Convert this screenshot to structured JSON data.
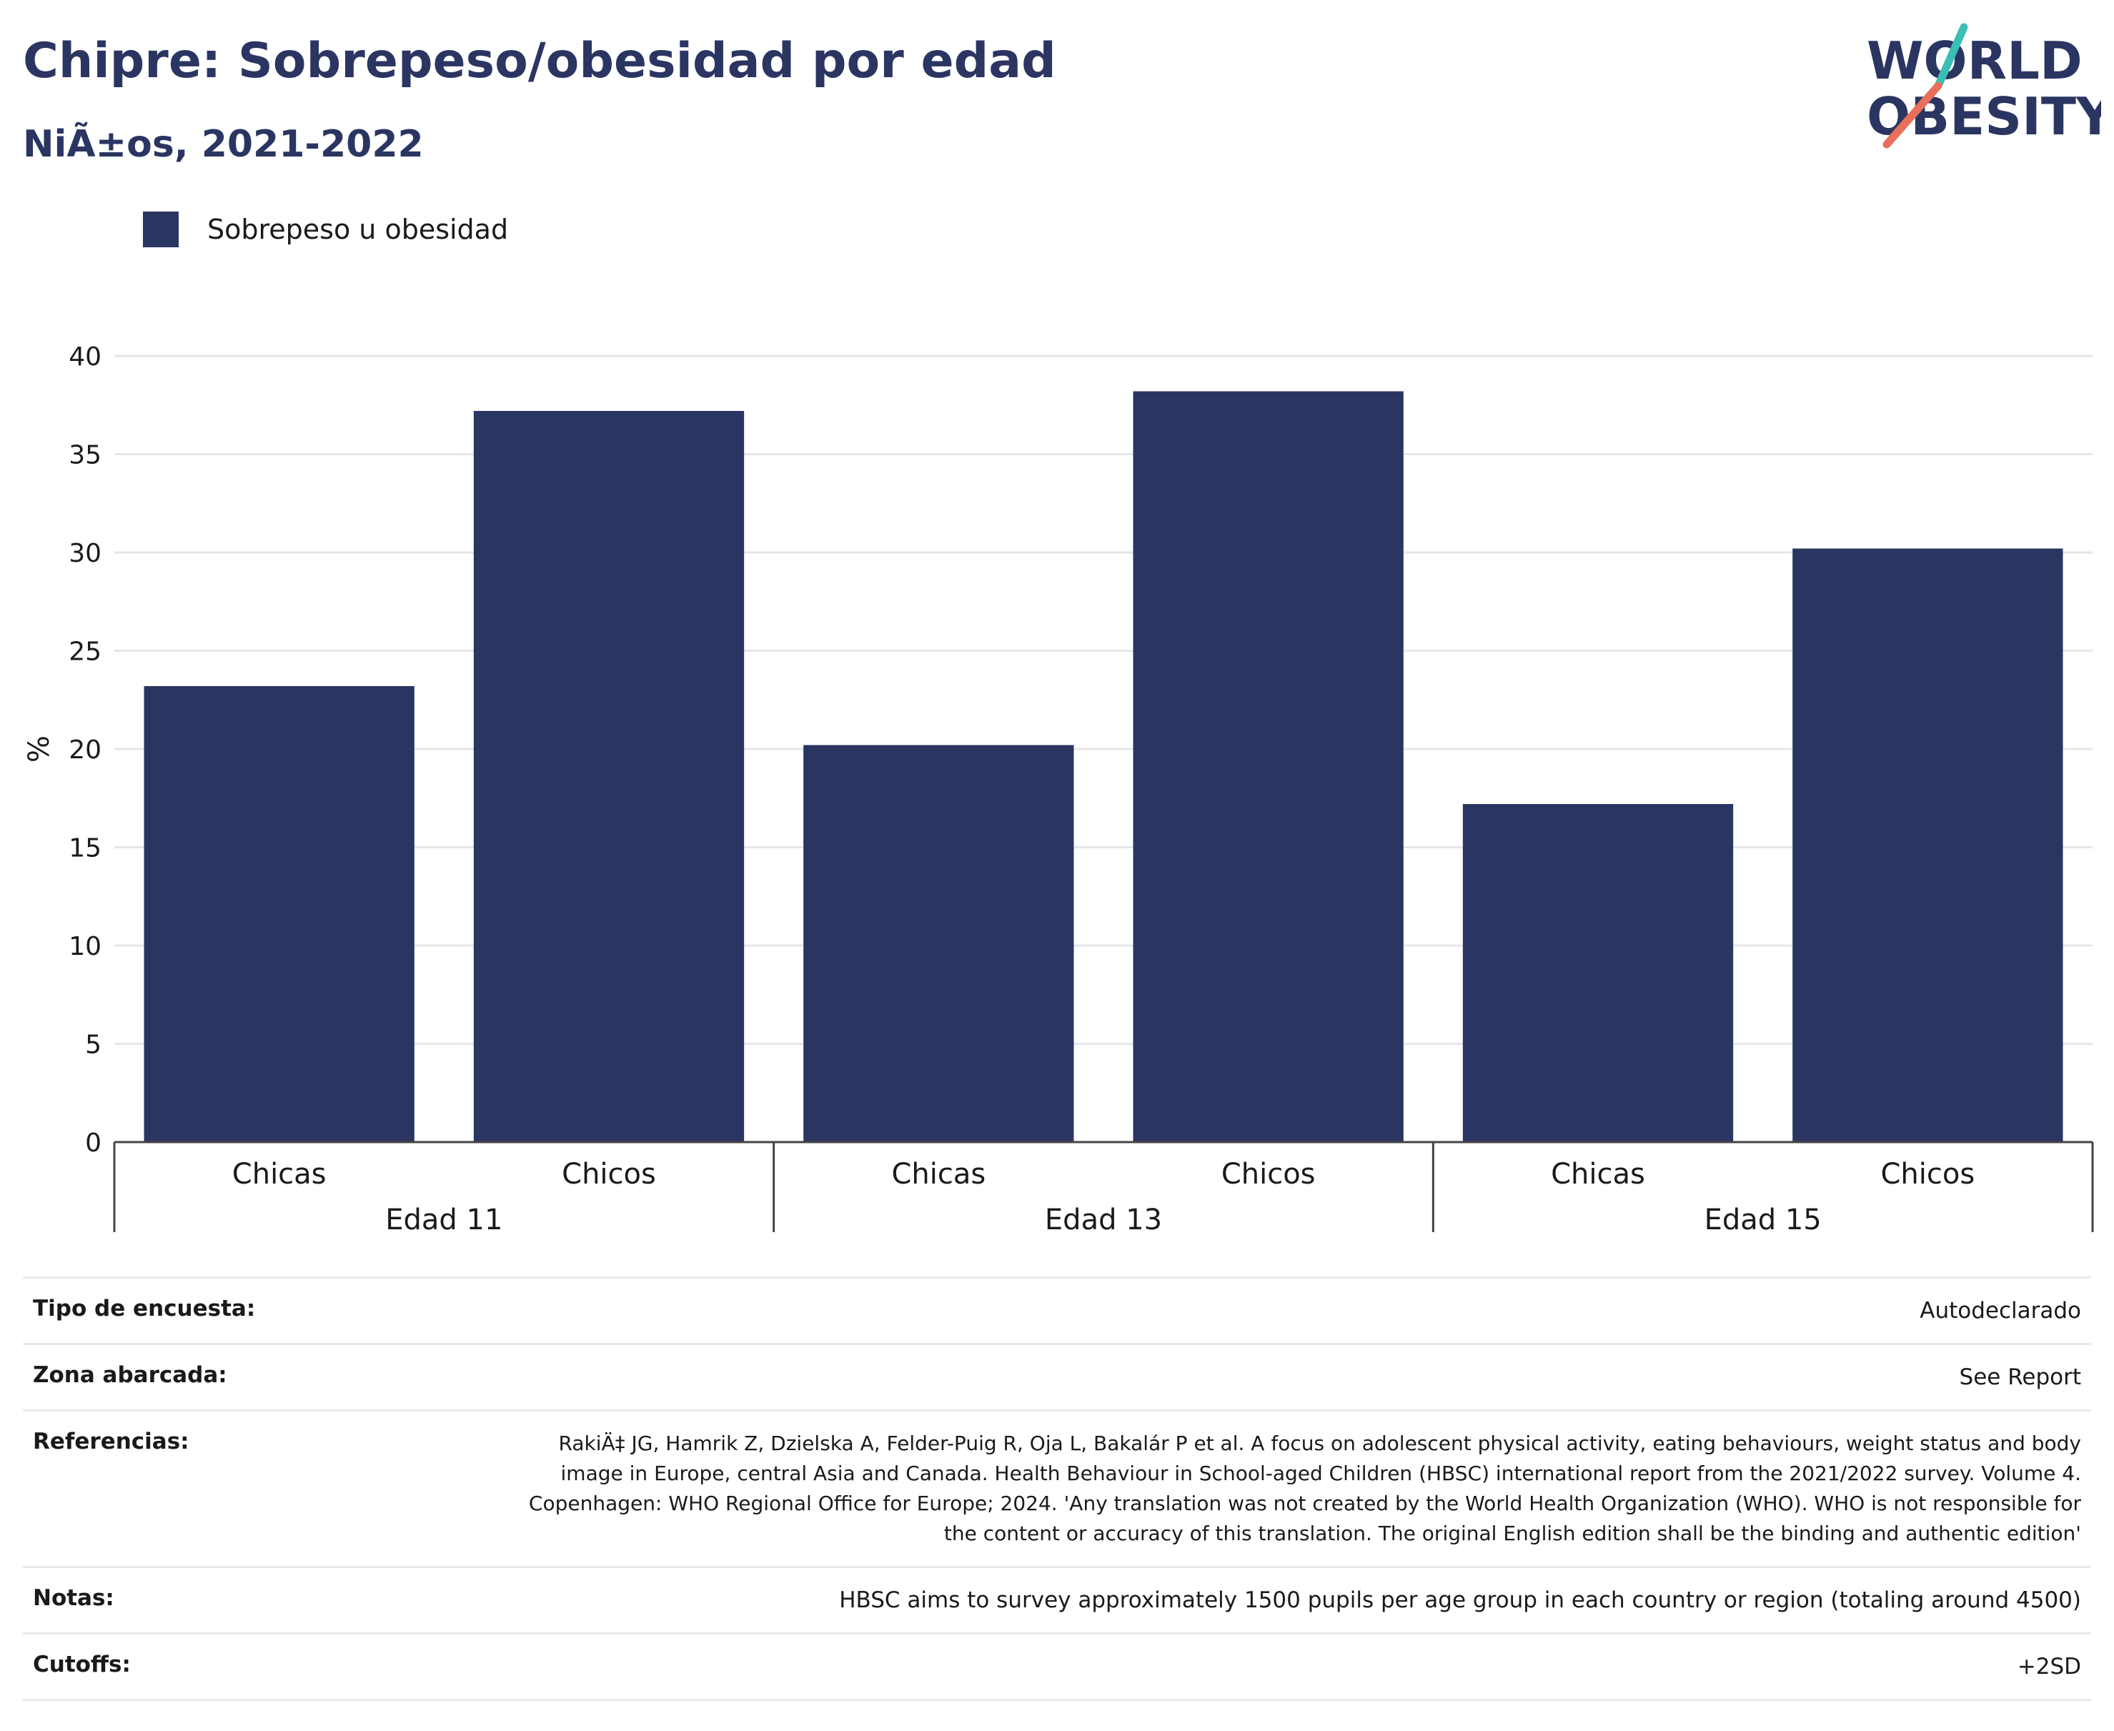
{
  "header": {
    "title": "Chipre: Sobrepeso/obesidad por edad",
    "subtitle": "NiÃ±os, 2021-2022"
  },
  "logo": {
    "line1": "WORLD",
    "line2": "OBESITY",
    "colors": {
      "text": "#2b3562",
      "slash_top": "#3bbfb5",
      "slash_bottom": "#e8705a"
    }
  },
  "legend": {
    "label": "Sobrepeso u obesidad",
    "color": "#2b3562"
  },
  "chart_data": {
    "type": "bar",
    "ylabel": "%",
    "ylim": [
      0,
      40
    ],
    "yticks": [
      0,
      5,
      10,
      15,
      20,
      25,
      30,
      35,
      40
    ],
    "grid": true,
    "legend_position": "top-left",
    "bar_color": "#2b3562",
    "groups": [
      {
        "label": "Edad 11",
        "categories": [
          "Chicas",
          "Chicos"
        ],
        "values": [
          23.2,
          37.2
        ]
      },
      {
        "label": "Edad 13",
        "categories": [
          "Chicas",
          "Chicos"
        ],
        "values": [
          20.2,
          38.2
        ]
      },
      {
        "label": "Edad 15",
        "categories": [
          "Chicas",
          "Chicos"
        ],
        "values": [
          17.2,
          30.2
        ]
      }
    ]
  },
  "info": {
    "survey_type": {
      "label": "Tipo de encuesta:",
      "value": "Autodeclarado"
    },
    "coverage": {
      "label": "Zona abarcada:",
      "value": "See Report"
    },
    "references": {
      "label": "Referencias:",
      "value": "RakiÄ‡ JG, Hamrik Z, Dzielska A, Felder-Puig R, Oja L, Bakalár P et al. A focus on adolescent physical activity, eating behaviours, weight status and body image in Europe, central Asia and Canada. Health Behaviour in School-aged Children (HBSC) international report from the 2021/2022 survey. Volume 4. Copenhagen: WHO Regional Office for Europe; 2024. 'Any translation was not created by the World Health Organization (WHO). WHO is not responsible for the content or accuracy of this translation. The original English edition shall be the binding and authentic edition'"
    },
    "notes": {
      "label": "Notas:",
      "value": "HBSC aims to survey approximately 1500 pupils per age group in each country or region (totaling around 4500)"
    },
    "cutoffs": {
      "label": "Cutoffs:",
      "value": "+2SD"
    }
  }
}
